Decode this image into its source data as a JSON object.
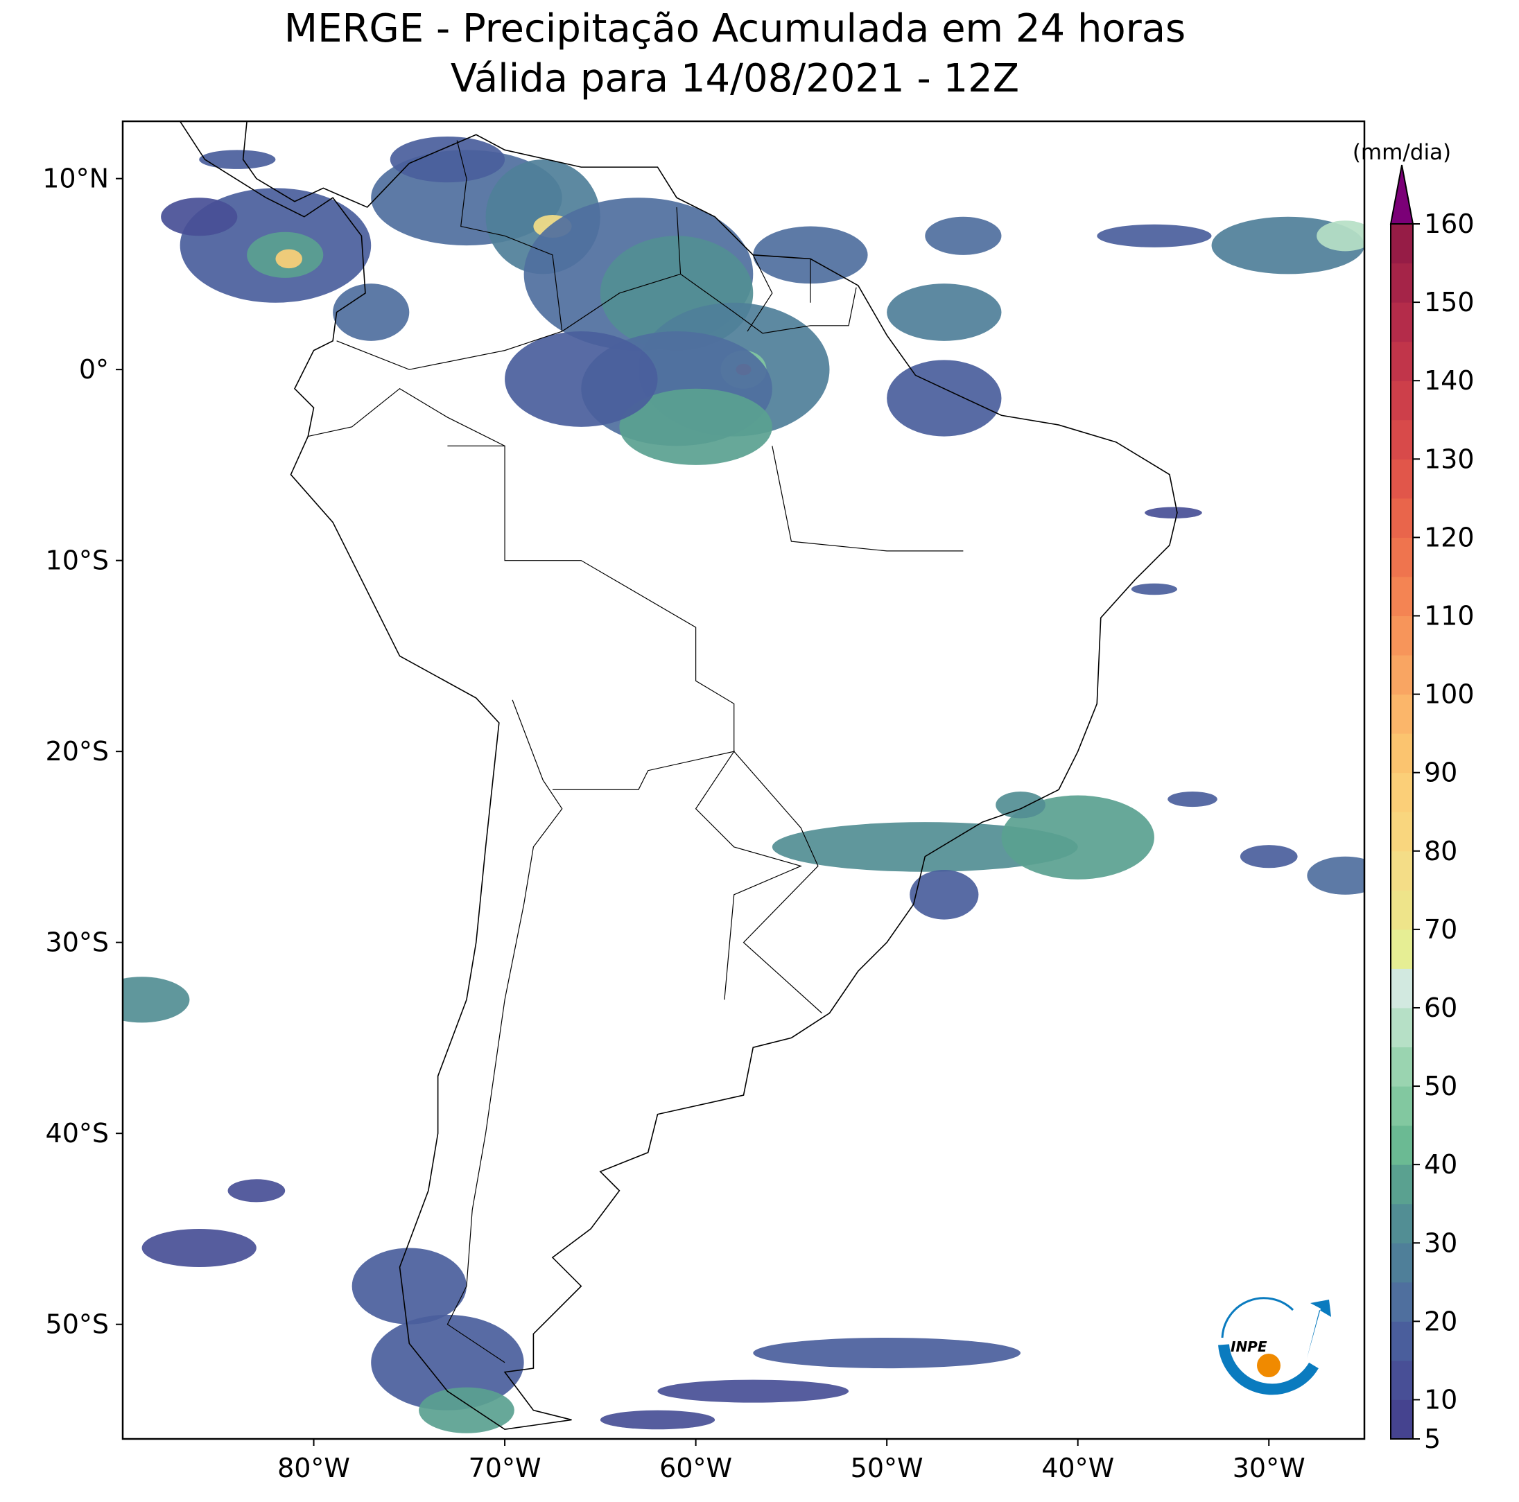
{
  "chart_data": {
    "type": "map",
    "title": "MERGE - Precipitação Acumulada em 24 horas",
    "subtitle": "Válida para 14/08/2021 - 12Z",
    "xlim": [
      -90,
      -25
    ],
    "ylim": [
      -56,
      13
    ],
    "xticks": [
      {
        "value": -80,
        "label": "80°W"
      },
      {
        "value": -70,
        "label": "70°W"
      },
      {
        "value": -60,
        "label": "60°W"
      },
      {
        "value": -50,
        "label": "50°W"
      },
      {
        "value": -40,
        "label": "40°W"
      },
      {
        "value": -30,
        "label": "30°W"
      }
    ],
    "yticks": [
      {
        "value": 10,
        "label": "10°N"
      },
      {
        "value": 0,
        "label": "0°"
      },
      {
        "value": -10,
        "label": "10°S"
      },
      {
        "value": -20,
        "label": "20°S"
      },
      {
        "value": -30,
        "label": "30°S"
      },
      {
        "value": -40,
        "label": "40°S"
      },
      {
        "value": -50,
        "label": "50°S"
      }
    ],
    "colorbar": {
      "label": "(mm/dia)",
      "lim": [
        5,
        160
      ],
      "ticks": [
        5,
        10,
        20,
        30,
        40,
        50,
        60,
        70,
        80,
        90,
        100,
        110,
        120,
        130,
        140,
        150,
        160
      ],
      "colors": [
        "#45438f",
        "#484f96",
        "#4a5e9c",
        "#4f6f9e",
        "#4f7f99",
        "#528e94",
        "#5aa190",
        "#6bba93",
        "#82c8a0",
        "#9ad4b0",
        "#b6e0c6",
        "#d2e9e0",
        "#e6ee94",
        "#eee48a",
        "#f4dd87",
        "#f9d67e",
        "#fbcf78",
        "#fbc46f",
        "#fbb66a",
        "#f9a562",
        "#f7955a",
        "#f48453",
        "#ef744e",
        "#e9654b",
        "#e1564a",
        "#d84a4a",
        "#cd3f4a",
        "#c1354a",
        "#b42c4a",
        "#a52448",
        "#961c46"
      ],
      "extend_color": "#7b0077"
    }
  }
}
